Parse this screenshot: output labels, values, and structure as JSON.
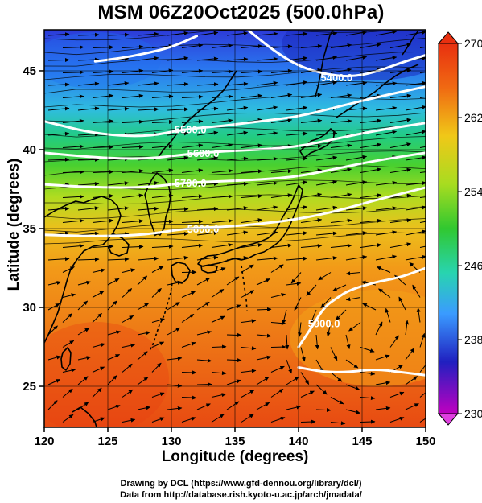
{
  "title": "MSM 06Z20Oct2025 (500.0hPa)",
  "axes": {
    "xlabel": "Longitude (degrees)",
    "ylabel": "Latitude  (degrees)",
    "xticks": [
      "120",
      "125",
      "130",
      "135",
      "140",
      "145",
      "150"
    ],
    "yticks": [
      "25",
      "30",
      "35",
      "40",
      "45"
    ],
    "xlim": [
      120,
      150
    ],
    "ylim": [
      22.4,
      47.6
    ]
  },
  "colorbar": {
    "ticks": [
      "270",
      "262",
      "254",
      "246",
      "238",
      "230"
    ],
    "range": [
      230,
      270
    ],
    "colors": [
      "#c000c0",
      "#2020c0",
      "#3a9bff",
      "#28d4b0",
      "#30c830",
      "#a8dc20",
      "#f0c818",
      "#f08a10",
      "#e83010"
    ]
  },
  "contours": [
    {
      "label": "5500.0",
      "lon": [
        120,
        124,
        128,
        131,
        134,
        137,
        140,
        143,
        146,
        150
      ],
      "lat": [
        41.8,
        41.0,
        40.8,
        41.3,
        41.5,
        41.8,
        42.1,
        42.7,
        43.3,
        44.0
      ]
    },
    {
      "label": "5600.0",
      "lon": [
        120,
        124,
        128,
        131,
        134,
        137,
        140,
        143,
        146,
        150
      ],
      "lat": [
        39.8,
        39.5,
        39.4,
        39.7,
        39.9,
        40.0,
        40.2,
        40.7,
        41.2,
        41.7
      ]
    },
    {
      "label": "5700.0",
      "lon": [
        120,
        124,
        128,
        131,
        134,
        137,
        140,
        143,
        146,
        150
      ],
      "lat": [
        37.8,
        37.6,
        37.6,
        37.9,
        38.0,
        38.1,
        38.3,
        38.8,
        39.3,
        39.8
      ]
    },
    {
      "label": "5800.0",
      "lon": [
        120,
        124,
        128,
        131,
        134,
        137,
        140,
        143,
        146,
        150
      ],
      "lat": [
        34.6,
        34.5,
        34.6,
        35.0,
        35.1,
        35.3,
        35.6,
        36.1,
        36.8,
        37.6
      ]
    },
    {
      "label": "5900.0",
      "lon": [
        140,
        141,
        142,
        143,
        144,
        146,
        148,
        150
      ],
      "lat": [
        27.5,
        28.7,
        30.0,
        30.6,
        31.1,
        31.6,
        31.9,
        32.5
      ]
    },
    {
      "label": "5900.0",
      "lon": [
        140,
        142,
        144,
        146,
        148,
        150
      ],
      "lat": [
        26.2,
        25.9,
        25.9,
        26.1,
        25.9,
        25.7
      ]
    },
    {
      "label": "5400.0",
      "lon": [
        124,
        126,
        128,
        130,
        132
      ],
      "lat": [
        45.6,
        45.8,
        46.1,
        46.5,
        47.2
      ]
    },
    {
      "label": "5400.0",
      "lon": [
        136,
        138,
        140,
        142,
        144,
        146,
        148,
        150
      ],
      "lat": [
        47.6,
        46.3,
        45.3,
        44.8,
        44.6,
        44.9,
        45.5,
        46.0
      ]
    }
  ],
  "contour_labels": [
    {
      "text": "5400.0",
      "lon": 143.0,
      "lat": 44.6
    },
    {
      "text": "5500.0",
      "lon": 131.5,
      "lat": 41.3
    },
    {
      "text": "5600.0",
      "lon": 132.5,
      "lat": 39.8
    },
    {
      "text": "5700.0",
      "lon": 131.5,
      "lat": 37.9
    },
    {
      "text": "5800.0",
      "lon": 132.5,
      "lat": 35.0
    },
    {
      "text": "5900.0",
      "lon": 142.0,
      "lat": 29.0
    }
  ],
  "credits": {
    "line1": "Drawing by DCL (https://www.gfd-dennou.org/library/dcl/)",
    "line2": "Data from http://database.rish.kyoto-u.ac.jp/arch/jmadata/"
  }
}
